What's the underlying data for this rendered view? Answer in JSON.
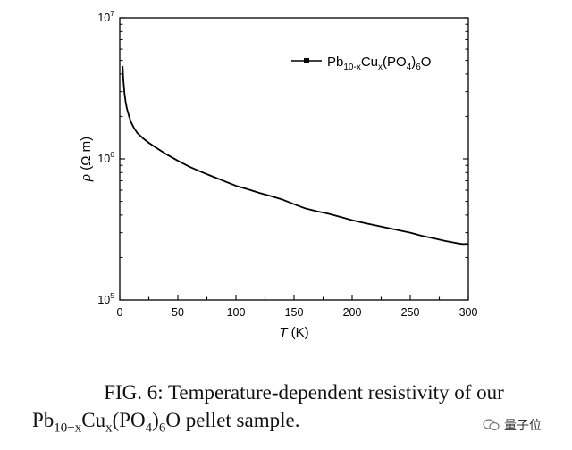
{
  "chart_data": {
    "type": "line",
    "title": "",
    "xlabel": "T (K)",
    "ylabel": "ρ (Ω m)",
    "xlim": [
      0,
      300
    ],
    "ylim": [
      100000,
      10000000
    ],
    "yscale": "log",
    "x_ticks": [
      "0",
      "50",
      "100",
      "150",
      "200",
      "250",
      "300"
    ],
    "y_ticks": [
      {
        "base": "10",
        "exp": "5",
        "value": 100000
      },
      {
        "base": "10",
        "exp": "6",
        "value": 1000000
      },
      {
        "base": "10",
        "exp": "7",
        "value": 10000000
      }
    ],
    "grid": false,
    "legend_position": "top-right",
    "series": [
      {
        "name": "Pb10-xCux(PO4)6O",
        "marker": "square",
        "color": "#000000",
        "x": [
          2.5,
          3,
          4,
          5,
          6,
          8,
          10,
          12,
          15,
          20,
          25,
          30,
          40,
          50,
          60,
          70,
          80,
          90,
          100,
          110,
          120,
          130,
          140,
          150,
          160,
          170,
          180,
          190,
          200,
          210,
          220,
          230,
          240,
          250,
          260,
          270,
          280,
          290,
          295,
          300
        ],
        "y": [
          4550000,
          3700000,
          2950000,
          2550000,
          2300000,
          2000000,
          1800000,
          1670000,
          1530000,
          1400000,
          1300000,
          1220000,
          1080000,
          970000,
          880000,
          810000,
          750000,
          695000,
          645000,
          610000,
          575000,
          545000,
          515000,
          478000,
          445000,
          425000,
          408000,
          388000,
          368000,
          352000,
          338000,
          325000,
          312000,
          300000,
          285000,
          274000,
          262000,
          253000,
          249000,
          250000
        ]
      }
    ]
  },
  "legend": {
    "label_base": "Pb",
    "label_sub1": "10-x",
    "label_mid": "Cu",
    "label_sub2": "x",
    "label_mid2": "(PO",
    "label_sub3": "4",
    "label_mid3": ")",
    "label_sub4": "6",
    "label_end": "O"
  },
  "axes": {
    "xlabel_var": "T",
    "xlabel_unit": " (K)",
    "ylabel_var": "ρ",
    "ylabel_unit": " (Ω m)"
  },
  "caption": {
    "line1": "FIG. 6:   Temperature-dependent resistivity of our",
    "line2_a": "Pb",
    "line2_sub1": "10−x",
    "line2_b": "Cu",
    "line2_sub2": "x",
    "line2_c": "(PO",
    "line2_sub3": "4",
    "line2_d": ")",
    "line2_sub4": "6",
    "line2_e": "O pellet sample."
  },
  "watermark": {
    "text": "量子位",
    "icon": "wechat-icon"
  }
}
